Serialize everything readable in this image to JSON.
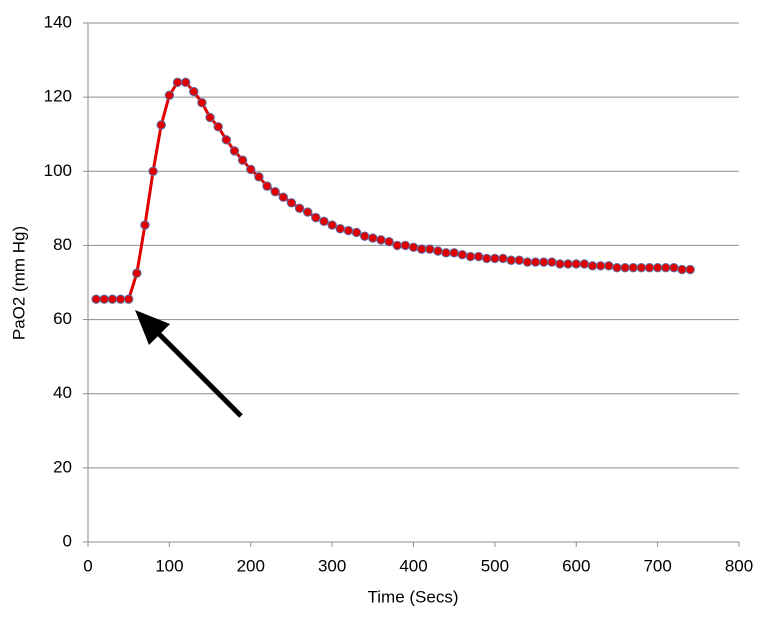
{
  "chart_data": {
    "type": "line",
    "xlabel": "Time  (Secs)",
    "ylabel": "PaO2 (mm Hg)",
    "x": [
      10,
      20,
      30,
      40,
      50,
      60,
      70,
      80,
      90,
      100,
      110,
      120,
      130,
      140,
      150,
      160,
      170,
      180,
      190,
      200,
      210,
      220,
      230,
      240,
      250,
      260,
      270,
      280,
      290,
      300,
      310,
      320,
      330,
      340,
      350,
      360,
      370,
      380,
      390,
      400,
      410,
      420,
      430,
      440,
      450,
      460,
      470,
      480,
      490,
      500,
      510,
      520,
      530,
      540,
      550,
      560,
      570,
      580,
      590,
      600,
      610,
      620,
      630,
      640,
      650,
      660,
      670,
      680,
      690,
      700,
      710,
      720,
      730,
      740
    ],
    "series": [
      {
        "name": "PaO2",
        "color": "#e00000",
        "marker_edge": "#5a6fa8",
        "values": [
          65.5,
          65.5,
          65.5,
          65.5,
          65.5,
          72.5,
          85.5,
          100,
          112.5,
          120.5,
          124,
          124,
          121.5,
          118.5,
          114.5,
          112,
          108.5,
          105.5,
          103,
          100.5,
          98.5,
          96,
          94.5,
          93,
          91.5,
          90,
          89,
          87.5,
          86.5,
          85.5,
          84.5,
          84,
          83.5,
          82.5,
          82,
          81.5,
          81,
          80,
          80,
          79.5,
          79,
          79,
          78.5,
          78,
          78,
          77.5,
          77,
          77,
          76.5,
          76.5,
          76.5,
          76,
          76,
          75.5,
          75.5,
          75.5,
          75.5,
          75,
          75,
          75,
          75,
          74.5,
          74.5,
          74.5,
          74,
          74,
          74,
          74,
          74,
          74,
          74,
          74,
          73.5,
          73.5
        ]
      }
    ],
    "xlim": [
      0,
      800
    ],
    "xticks": [
      0,
      100,
      200,
      300,
      400,
      500,
      600,
      700,
      800
    ],
    "ylim": [
      0,
      140
    ],
    "yticks": [
      0,
      20,
      40,
      60,
      80,
      100,
      120,
      140
    ],
    "grid": true
  }
}
